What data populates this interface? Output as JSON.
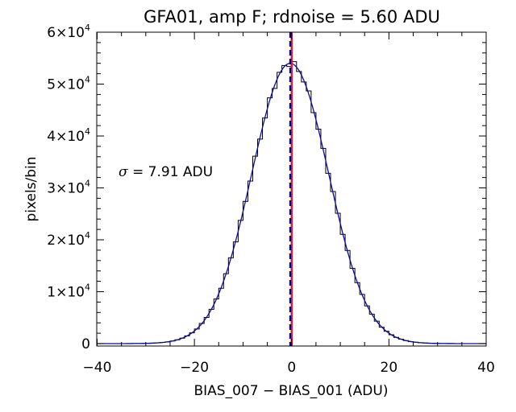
{
  "chart_data": {
    "type": "histogram",
    "title": "GFA01, amp F; rdnoise = 5.60 ADU",
    "xlabel": "BIAS_007 − BIAS_001 (ADU)",
    "ylabel": "pixels/bin",
    "xlim": [
      -40,
      40
    ],
    "ylim": [
      0,
      60000
    ],
    "x_ticks": [
      -40,
      -20,
      0,
      20,
      40
    ],
    "x_tick_labels": [
      "−40",
      "−20",
      "0",
      "20",
      "40"
    ],
    "y_ticks": [
      0,
      10000,
      20000,
      30000,
      40000,
      50000,
      60000
    ],
    "y_tick_labels": [
      {
        "mantissa": "0",
        "exp": ""
      },
      {
        "mantissa": "1×10",
        "exp": "4"
      },
      {
        "mantissa": "2×10",
        "exp": "4"
      },
      {
        "mantissa": "3×10",
        "exp": "4"
      },
      {
        "mantissa": "4×10",
        "exp": "4"
      },
      {
        "mantissa": "5×10",
        "exp": "4"
      },
      {
        "mantissa": "6×10",
        "exp": "4"
      }
    ],
    "bin_width": 1,
    "gaussian_fit": {
      "peak": 54000,
      "center": -0.3,
      "sigma": 7.91
    },
    "vlines": [
      {
        "x": 0,
        "color": "#e8102a",
        "style": "solid"
      },
      {
        "x": -0.3,
        "color": "#000080",
        "style": "dashed"
      }
    ],
    "annotation": {
      "symbol": "σ",
      "text": " = 7.91 ADU"
    },
    "colors": {
      "histogram": "#000000",
      "fit": "#0a0aa0",
      "axes": "#000000"
    }
  }
}
